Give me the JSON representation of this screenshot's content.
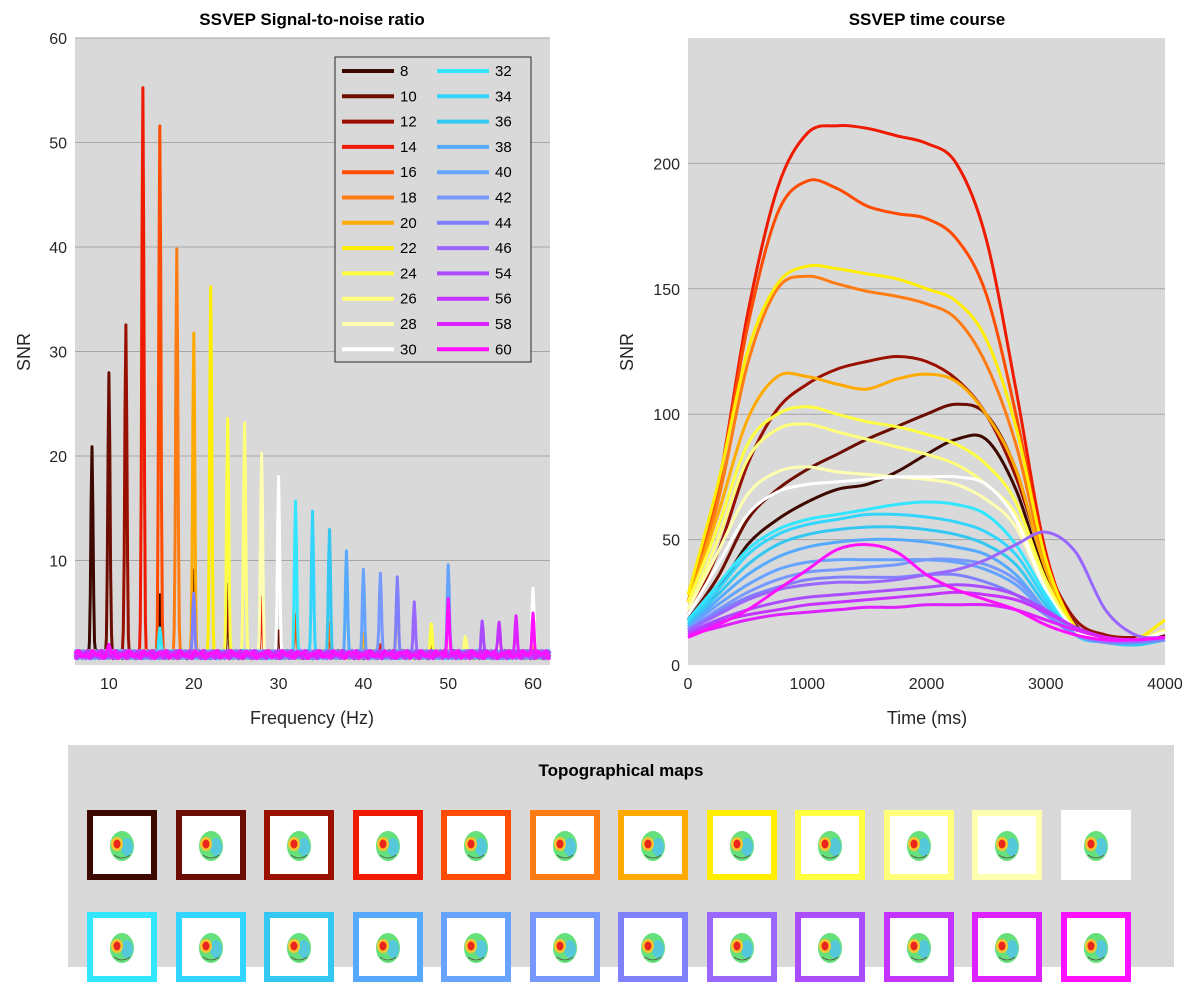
{
  "chart_data": [
    {
      "type": "line",
      "title": "SSVEP Signal-to-noise ratio",
      "xlabel": "Frequency (Hz)",
      "ylabel": "SNR",
      "xlim": [
        6,
        62
      ],
      "ylim": [
        0,
        60
      ],
      "xticks": [
        10,
        20,
        30,
        40,
        50,
        60
      ],
      "yticks": [
        10,
        20,
        30,
        40,
        50,
        60
      ],
      "grid": "horizontal",
      "legend": "top-right",
      "baseline_snr": 1,
      "series": [
        {
          "name": "8",
          "color": "#3d0800",
          "peaks": [
            [
              8,
              21.0
            ],
            [
              16,
              7.0
            ],
            [
              24,
              6.0
            ]
          ]
        },
        {
          "name": "10",
          "color": "#6b0d00",
          "peaks": [
            [
              10,
              27.7
            ],
            [
              20,
              9.0
            ],
            [
              30,
              3.0
            ],
            [
              40,
              1.5
            ]
          ]
        },
        {
          "name": "12",
          "color": "#990f00",
          "peaks": [
            [
              12,
              32.5
            ],
            [
              24,
              7.5
            ],
            [
              36,
              3.0
            ],
            [
              48,
              1.5
            ]
          ]
        },
        {
          "name": "14",
          "color": "#ef1b00",
          "peaks": [
            [
              14,
              55.5
            ],
            [
              28,
              6.5
            ],
            [
              42,
              2.0
            ],
            [
              56,
              1.3
            ]
          ]
        },
        {
          "name": "16",
          "color": "#ff4c00",
          "peaks": [
            [
              16,
              51.6
            ],
            [
              32,
              5.0
            ],
            [
              48,
              1.5
            ]
          ]
        },
        {
          "name": "18",
          "color": "#ff7c12",
          "peaks": [
            [
              18,
              39.6
            ],
            [
              36,
              4.0
            ],
            [
              54,
              1.5
            ]
          ]
        },
        {
          "name": "20",
          "color": "#ffaa00",
          "peaks": [
            [
              20,
              31.7
            ],
            [
              40,
              3.0
            ],
            [
              60,
              1.5
            ]
          ]
        },
        {
          "name": "22",
          "color": "#ffee00",
          "peaks": [
            [
              22,
              36.5
            ],
            [
              44,
              8.0
            ]
          ]
        },
        {
          "name": "24",
          "color": "#ffff40",
          "peaks": [
            [
              24,
              23.5
            ],
            [
              48,
              4.0
            ]
          ]
        },
        {
          "name": "26",
          "color": "#ffff7a",
          "peaks": [
            [
              26,
              23.0
            ],
            [
              52,
              2.5
            ]
          ]
        },
        {
          "name": "28",
          "color": "#ffffb0",
          "peaks": [
            [
              28,
              20.2
            ],
            [
              56,
              2.0
            ]
          ]
        },
        {
          "name": "30",
          "color": "#ffffff",
          "peaks": [
            [
              30,
              18.4
            ],
            [
              60,
              7.6
            ]
          ]
        },
        {
          "name": "32",
          "color": "#33e6ff",
          "peaks": [
            [
              32,
              15.5
            ],
            [
              16,
              3.5
            ]
          ]
        },
        {
          "name": "34",
          "color": "#33d5ff",
          "peaks": [
            [
              34,
              14.6
            ]
          ]
        },
        {
          "name": "36",
          "color": "#33c7f2",
          "peaks": [
            [
              36,
              12.9
            ]
          ]
        },
        {
          "name": "38",
          "color": "#55aaff",
          "peaks": [
            [
              38,
              11.3
            ]
          ]
        },
        {
          "name": "40",
          "color": "#66a3ff",
          "peaks": [
            [
              40,
              8.9
            ],
            [
              50,
              9.7
            ]
          ]
        },
        {
          "name": "42",
          "color": "#7799ff",
          "peaks": [
            [
              42,
              8.7
            ]
          ]
        },
        {
          "name": "44",
          "color": "#8080ff",
          "peaks": [
            [
              44,
              8.4
            ],
            [
              20,
              7.0
            ]
          ]
        },
        {
          "name": "46",
          "color": "#9966ff",
          "peaks": [
            [
              46,
              6.4
            ]
          ]
        },
        {
          "name": "54",
          "color": "#aa4cff",
          "peaks": [
            [
              54,
              4.0
            ]
          ]
        },
        {
          "name": "56",
          "color": "#c433ff",
          "peaks": [
            [
              56,
              4.0
            ]
          ]
        },
        {
          "name": "58",
          "color": "#dd22ff",
          "peaks": [
            [
              58,
              4.7
            ]
          ]
        },
        {
          "name": "60",
          "color": "#ff11ff",
          "peaks": [
            [
              60,
              5.3
            ],
            [
              50,
              6.5
            ],
            [
              10,
              1.8
            ]
          ]
        }
      ]
    },
    {
      "type": "line",
      "title": "SSVEP time course",
      "xlabel": "Time (ms)",
      "ylabel": "SNR",
      "xlim": [
        0,
        4000
      ],
      "ylim": [
        0,
        250
      ],
      "xticks": [
        0,
        1000,
        2000,
        3000,
        4000
      ],
      "yticks": [
        0,
        50,
        100,
        150,
        200
      ],
      "grid": "horizontal",
      "time_ms": [
        0,
        250,
        500,
        750,
        1000,
        1250,
        1500,
        1750,
        2000,
        2250,
        2500,
        2750,
        3000,
        3250,
        3500,
        3750,
        4000
      ],
      "series": [
        {
          "color": "#3d0800",
          "values": [
            18,
            30,
            48,
            58,
            65,
            70,
            72,
            77,
            84,
            90,
            90,
            70,
            35,
            15,
            10,
            10,
            12
          ]
        },
        {
          "color": "#6b0d00",
          "values": [
            18,
            35,
            58,
            70,
            78,
            84,
            90,
            95,
            100,
            104,
            100,
            78,
            38,
            16,
            10,
            10,
            12
          ]
        },
        {
          "color": "#990f00",
          "values": [
            20,
            45,
            80,
            102,
            112,
            118,
            121,
            123,
            121,
            114,
            100,
            75,
            40,
            18,
            12,
            11,
            13
          ]
        },
        {
          "color": "#ef1b00",
          "values": [
            25,
            70,
            140,
            190,
            212,
            215,
            214,
            211,
            208,
            200,
            170,
            110,
            45,
            15,
            10,
            10,
            14
          ]
        },
        {
          "color": "#ff4c00",
          "values": [
            25,
            70,
            135,
            180,
            193,
            190,
            183,
            180,
            178,
            170,
            148,
            100,
            42,
            15,
            10,
            10,
            14
          ]
        },
        {
          "color": "#ff7c12",
          "values": [
            25,
            65,
            120,
            150,
            155,
            152,
            149,
            147,
            144,
            138,
            120,
            88,
            40,
            15,
            10,
            10,
            14
          ]
        },
        {
          "color": "#ffaa00",
          "values": [
            25,
            60,
            98,
            115,
            115,
            112,
            110,
            114,
            116,
            113,
            100,
            78,
            38,
            15,
            10,
            10,
            14
          ]
        },
        {
          "color": "#ffee00",
          "values": [
            28,
            72,
            125,
            152,
            159,
            158,
            156,
            154,
            150,
            145,
            130,
            95,
            42,
            15,
            10,
            10,
            18
          ]
        },
        {
          "color": "#ffff40",
          "values": [
            25,
            55,
            88,
            100,
            103,
            100,
            97,
            95,
            92,
            88,
            80,
            65,
            34,
            14,
            10,
            10,
            14
          ]
        },
        {
          "color": "#ffff7a",
          "values": [
            22,
            50,
            82,
            94,
            96,
            93,
            90,
            87,
            84,
            80,
            72,
            60,
            32,
            14,
            10,
            10,
            14
          ]
        },
        {
          "color": "#ffffb0",
          "values": [
            22,
            45,
            68,
            77,
            79,
            77,
            76,
            75,
            74,
            72,
            66,
            55,
            30,
            14,
            10,
            10,
            13
          ]
        },
        {
          "color": "#ffffff",
          "values": [
            20,
            40,
            60,
            69,
            72,
            73,
            74,
            75,
            75,
            75,
            72,
            58,
            30,
            14,
            10,
            10,
            13
          ]
        },
        {
          "color": "#33e6ff",
          "values": [
            18,
            32,
            46,
            54,
            58,
            60,
            62,
            64,
            65,
            64,
            60,
            48,
            28,
            12,
            9,
            8,
            10
          ]
        },
        {
          "color": "#33d5ff",
          "values": [
            17,
            30,
            44,
            52,
            56,
            58,
            60,
            60,
            59,
            57,
            53,
            44,
            26,
            12,
            9,
            8,
            10
          ]
        },
        {
          "color": "#33c7f2",
          "values": [
            16,
            28,
            40,
            48,
            52,
            54,
            55,
            55,
            54,
            52,
            48,
            40,
            24,
            12,
            9,
            8,
            10
          ]
        },
        {
          "color": "#55aaff",
          "values": [
            15,
            26,
            36,
            43,
            47,
            49,
            50,
            50,
            49,
            47,
            44,
            36,
            22,
            12,
            9,
            9,
            10
          ]
        },
        {
          "color": "#66a3ff",
          "values": [
            15,
            24,
            32,
            38,
            41,
            42,
            42,
            42,
            42,
            41,
            38,
            32,
            21,
            12,
            9,
            9,
            10
          ]
        },
        {
          "color": "#7799ff",
          "values": [
            14,
            22,
            29,
            34,
            37,
            38,
            39,
            40,
            42,
            42,
            40,
            34,
            22,
            12,
            9,
            9,
            10
          ]
        },
        {
          "color": "#8080ff",
          "values": [
            14,
            21,
            27,
            31,
            34,
            35,
            35,
            35,
            36,
            36,
            33,
            28,
            20,
            12,
            9,
            9,
            10
          ]
        },
        {
          "color": "#9966ff",
          "values": [
            14,
            20,
            26,
            30,
            32,
            33,
            33,
            34,
            36,
            38,
            42,
            48,
            53,
            45,
            22,
            12,
            11
          ]
        },
        {
          "color": "#aa4cff",
          "values": [
            13,
            18,
            22,
            25,
            27,
            28,
            29,
            30,
            31,
            32,
            31,
            28,
            22,
            15,
            11,
            10,
            11
          ]
        },
        {
          "color": "#c433ff",
          "values": [
            12,
            17,
            20,
            22,
            24,
            25,
            26,
            27,
            28,
            29,
            28,
            26,
            21,
            15,
            11,
            10,
            11
          ]
        },
        {
          "color": "#dd22ff",
          "values": [
            12,
            15,
            18,
            20,
            21,
            22,
            23,
            23,
            24,
            24,
            24,
            22,
            18,
            14,
            11,
            10,
            11
          ]
        },
        {
          "color": "#ff11ff",
          "values": [
            11,
            16,
            22,
            30,
            38,
            46,
            48,
            45,
            36,
            30,
            26,
            22,
            16,
            12,
            10,
            10,
            11
          ]
        }
      ]
    }
  ],
  "topo": {
    "title": "Topographical maps",
    "colors": [
      "#3d0800",
      "#6b0d00",
      "#990f00",
      "#ef1b00",
      "#ff4c00",
      "#ff7c12",
      "#ffaa00",
      "#ffee00",
      "#ffff40",
      "#ffff7a",
      "#ffffb0",
      "#ffffff",
      "#33e6ff",
      "#33d5ff",
      "#33c7f2",
      "#55aaff",
      "#66a3ff",
      "#7799ff",
      "#8080ff",
      "#9966ff",
      "#aa4cff",
      "#c433ff",
      "#dd22ff",
      "#ff11ff"
    ]
  }
}
